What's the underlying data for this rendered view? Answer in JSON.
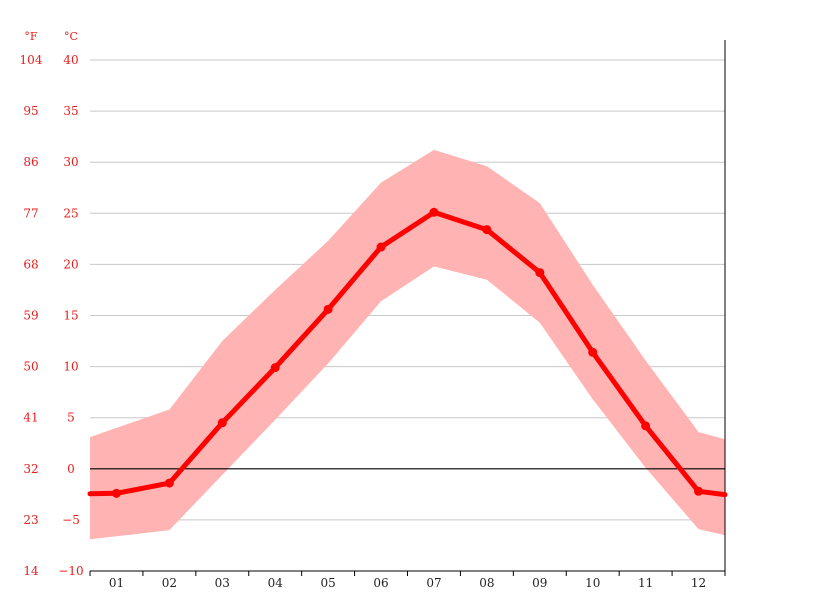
{
  "chart_data": {
    "type": "line",
    "unit_labels": {
      "left": "°F",
      "right": "°C"
    },
    "categories": [
      "01",
      "02",
      "03",
      "04",
      "05",
      "06",
      "07",
      "08",
      "09",
      "10",
      "11",
      "12"
    ],
    "y_ticks_c": [
      "40",
      "35",
      "30",
      "25",
      "20",
      "15",
      "10",
      "5",
      "0",
      "−5",
      "−10"
    ],
    "y_ticks_f": [
      "104",
      "95",
      "86",
      "77",
      "68",
      "59",
      "50",
      "41",
      "32",
      "23",
      "14"
    ],
    "ylim": [
      -10,
      40
    ],
    "series": [
      {
        "values": [
          -2.4,
          -1.4,
          4.5,
          9.9,
          15.6,
          21.7,
          25.1,
          23.4,
          19.2,
          11.4,
          4.2,
          -2.2
        ]
      }
    ],
    "band": {
      "upper": [
        4.0,
        5.8,
        12.5,
        17.5,
        22.3,
        28.0,
        31.2,
        29.6,
        26.0,
        18.0,
        10.6,
        3.6
      ],
      "lower": [
        -6.6,
        -6.0,
        -0.6,
        4.8,
        10.3,
        16.4,
        19.8,
        18.5,
        14.3,
        6.8,
        0.1,
        -5.9
      ]
    },
    "colors": {
      "line": "#ff0000",
      "band": "#ffb3b3",
      "grid": "#c8c8c8",
      "zero_line": "#000000",
      "tick_label": "#e81c1c",
      "axis_label": "#222222"
    },
    "grid": true
  }
}
